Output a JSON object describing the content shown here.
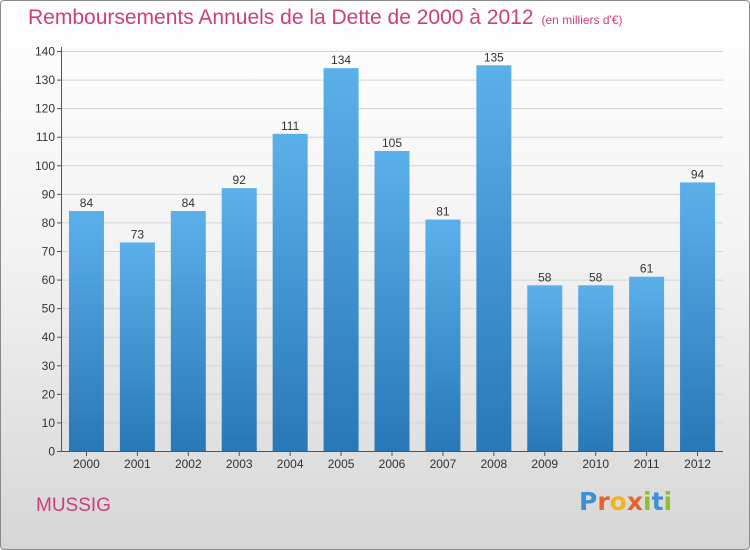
{
  "title": "Remboursements Annuels de la Dette de 2000 à 2012",
  "unit": "(en milliers d'€)",
  "commune": "MUSSIG",
  "logo": "Proxiti",
  "colors": {
    "title": "#cc3f7a",
    "bar_top": "#5cb0ea",
    "bar_bottom": "#2878b8"
  },
  "chart_data": {
    "type": "bar",
    "categories": [
      "2000",
      "2001",
      "2002",
      "2003",
      "2004",
      "2005",
      "2006",
      "2007",
      "2008",
      "2009",
      "2010",
      "2011",
      "2012"
    ],
    "values": [
      84,
      73,
      84,
      92,
      111,
      134,
      105,
      81,
      135,
      58,
      58,
      61,
      94
    ],
    "ylim": [
      0,
      140
    ],
    "yticks": [
      0,
      10,
      20,
      30,
      40,
      50,
      60,
      70,
      80,
      90,
      100,
      110,
      120,
      130,
      140
    ],
    "grid": true,
    "data_labels": true
  }
}
